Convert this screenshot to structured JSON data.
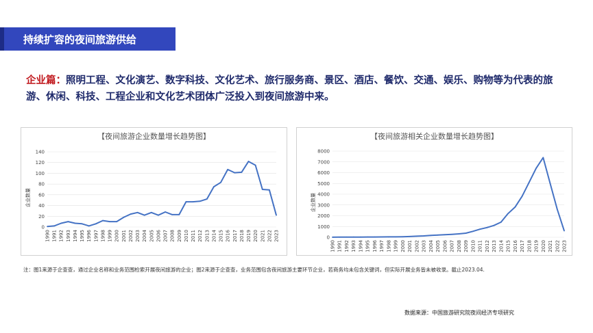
{
  "header": {
    "title": "持续扩容的夜间旅游供给"
  },
  "intro": {
    "lead": "企业篇：",
    "text": "照明工程、文化演艺、数字科技、文化艺术、旅行服务商、景区、酒店、餐饮、交通、娱乐、购物等为代表的旅游、休闲、科技、工程企业和文化艺术团体广泛投入到夜间旅游中来。"
  },
  "colors": {
    "title_bar": "#3247bd",
    "line": "#4472c4",
    "lead": "#c0171c",
    "text": "#1f2a6b"
  },
  "chart_data": [
    {
      "type": "line",
      "title": "【夜间旅游企业数量增长趋势图】",
      "ylabel": "企业数量",
      "xlabel": "",
      "ylim": [
        0,
        140
      ],
      "yticks": [
        0,
        20,
        40,
        60,
        80,
        100,
        120,
        140
      ],
      "grid": true,
      "categories": [
        "1990",
        "1991",
        "1992",
        "1993",
        "1994",
        "1995",
        "1996",
        "1997",
        "1998",
        "1999",
        "2000",
        "2001",
        "2002",
        "2003",
        "2004",
        "2005",
        "2006",
        "2007",
        "2008",
        "2009",
        "2010",
        "2011",
        "2012",
        "2013",
        "2014",
        "2015",
        "2016",
        "2017",
        "2018",
        "2019",
        "2020",
        "2021",
        "2022",
        "2023"
      ],
      "values": [
        1,
        2,
        7,
        10,
        7,
        6,
        2,
        6,
        12,
        10,
        10,
        18,
        24,
        27,
        22,
        27,
        22,
        28,
        23,
        23,
        47,
        47,
        48,
        52,
        75,
        83,
        107,
        101,
        102,
        122,
        115,
        70,
        69,
        22
      ]
    },
    {
      "type": "line",
      "title": "【夜间旅游相关企业数量增长趋势图】",
      "ylabel": "企业数量",
      "xlabel": "",
      "ylim": [
        0,
        8000
      ],
      "yticks": [
        0,
        1000,
        2000,
        3000,
        4000,
        5000,
        6000,
        7000,
        8000
      ],
      "grid": true,
      "categories": [
        "1990",
        "1991",
        "1992",
        "1993",
        "1994",
        "1995",
        "1996",
        "1997",
        "1998",
        "1999",
        "2000",
        "2001",
        "2002",
        "2003",
        "2004",
        "2005",
        "2006",
        "2007",
        "2008",
        "2009",
        "2010",
        "2011",
        "2012",
        "2013",
        "2014",
        "2015",
        "2016",
        "2017",
        "2018",
        "2019",
        "2020",
        "2021",
        "2022",
        "2023"
      ],
      "values": [
        5,
        10,
        15,
        20,
        20,
        25,
        25,
        30,
        35,
        40,
        50,
        70,
        100,
        130,
        170,
        200,
        240,
        270,
        320,
        380,
        550,
        750,
        900,
        1100,
        1400,
        2200,
        2800,
        3800,
        5100,
        6400,
        7400,
        5000,
        2600,
        600
      ]
    }
  ],
  "note": "注：图1来源于企查查，通过企业名称和业务范围检索开展夜间旅游的企业；图2来源于企查查，业务范围包含夜间旅游主要环节企业，若商务均未包含关键词，但实际开展业务皆未被收录。截止2023.04.",
  "source": "数据来源：中国旅游研究院夜间经济专项研究"
}
